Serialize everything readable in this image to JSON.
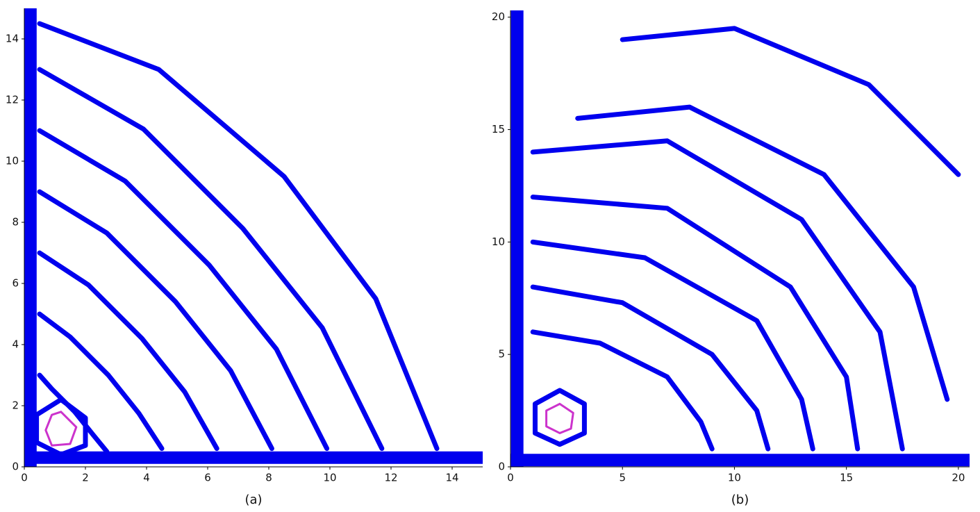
{
  "chart_data": [
    {
      "type": "line",
      "label": "(a)",
      "xlim": [
        0,
        15
      ],
      "ylim": [
        0,
        15
      ],
      "xticks": [
        0,
        2,
        4,
        6,
        8,
        10,
        12,
        14
      ],
      "yticks": [
        0,
        2,
        4,
        6,
        8,
        10,
        12,
        14
      ],
      "series": [
        {
          "color": "#0000ee",
          "x": [
            0.2,
            0.2
          ],
          "y": [
            0,
            15
          ]
        },
        {
          "color": "#0000ee",
          "x": [
            0,
            15
          ],
          "y": [
            0.3,
            0.3
          ]
        },
        {
          "color": "#0000ee",
          "x": [
            0.5,
            0.9,
            1.65,
            2.25,
            2.7
          ],
          "y": [
            3,
            2.55,
            1.8,
            1.05,
            0.5
          ]
        },
        {
          "color": "#0000ee",
          "x": [
            0.5,
            1.5,
            2.75,
            3.75,
            4.5
          ],
          "y": [
            5,
            4.25,
            3,
            1.75,
            0.6
          ]
        },
        {
          "color": "#0000ee",
          "x": [
            0.5,
            2.1,
            3.85,
            5.25,
            6.3
          ],
          "y": [
            7,
            5.95,
            4.2,
            2.45,
            0.6
          ]
        },
        {
          "color": "#0000ee",
          "x": [
            0.5,
            2.7,
            4.95,
            6.75,
            8.1
          ],
          "y": [
            9,
            7.65,
            5.4,
            3.15,
            0.6
          ]
        },
        {
          "color": "#0000ee",
          "x": [
            0.5,
            3.3,
            6.05,
            8.25,
            9.9
          ],
          "y": [
            11,
            9.35,
            6.6,
            3.85,
            0.6
          ]
        },
        {
          "color": "#0000ee",
          "x": [
            0.5,
            3.9,
            7.15,
            9.75,
            11.7
          ],
          "y": [
            13,
            11.05,
            7.8,
            4.55,
            0.6
          ]
        },
        {
          "color": "#0000ee",
          "x": [
            0.5,
            4.4,
            8.5,
            11.5,
            13.5
          ],
          "y": [
            14.5,
            13,
            9.5,
            5.5,
            0.6
          ]
        },
        {
          "color": "#0000ee",
          "x": [
            1.2,
            2.0,
            2.0,
            1.2,
            0.4,
            0.4,
            1.2
          ],
          "y": [
            2.2,
            1.6,
            0.7,
            0.4,
            0.8,
            1.7,
            2.2
          ]
        },
        {
          "color": "#cc33cc",
          "x": [
            1.2,
            1.7,
            1.5,
            0.9,
            0.7,
            0.9,
            1.2
          ],
          "y": [
            1.8,
            1.3,
            0.75,
            0.7,
            1.2,
            1.7,
            1.8
          ]
        }
      ]
    },
    {
      "type": "line",
      "label": "(b)",
      "xlim": [
        0,
        20.5
      ],
      "ylim": [
        0,
        20.3
      ],
      "xticks": [
        0,
        5,
        10,
        15,
        20
      ],
      "yticks": [
        0,
        5,
        10,
        15,
        20
      ],
      "series": [
        {
          "color": "#0000ee",
          "x": [
            0.3,
            0.3
          ],
          "y": [
            0,
            20.3
          ]
        },
        {
          "color": "#0000ee",
          "x": [
            0,
            20.5
          ],
          "y": [
            0.3,
            0.3
          ]
        },
        {
          "color": "#0000ee",
          "x": [
            1,
            4,
            7,
            8.5,
            9
          ],
          "y": [
            6,
            5.5,
            4,
            2,
            0.8
          ]
        },
        {
          "color": "#0000ee",
          "x": [
            1,
            5,
            9,
            11,
            11.5
          ],
          "y": [
            8,
            7.3,
            5,
            2.5,
            0.8
          ]
        },
        {
          "color": "#0000ee",
          "x": [
            1,
            6,
            11,
            13,
            13.5
          ],
          "y": [
            10,
            9.3,
            6.5,
            3,
            0.8
          ]
        },
        {
          "color": "#0000ee",
          "x": [
            1,
            7,
            12.5,
            15,
            15.5
          ],
          "y": [
            12,
            11.5,
            8,
            4,
            0.8
          ]
        },
        {
          "color": "#0000ee",
          "x": [
            1,
            7,
            13,
            16.5,
            17.5
          ],
          "y": [
            14,
            14.5,
            11,
            6,
            0.8
          ]
        },
        {
          "color": "#0000ee",
          "x": [
            3,
            8,
            14,
            18,
            19.5
          ],
          "y": [
            15.5,
            16,
            13,
            8,
            3
          ]
        },
        {
          "color": "#0000ee",
          "x": [
            5,
            10,
            16,
            20
          ],
          "y": [
            19,
            19.5,
            17,
            13
          ]
        },
        {
          "color": "#0000ee",
          "x": [
            2.2,
            3.3,
            3.3,
            2.2,
            1.1,
            1.1,
            2.2
          ],
          "y": [
            3.4,
            2.8,
            1.5,
            1.0,
            1.5,
            2.8,
            3.4
          ]
        },
        {
          "color": "#cc33cc",
          "x": [
            2.2,
            2.8,
            2.7,
            2.2,
            1.6,
            1.6,
            2.2
          ],
          "y": [
            2.8,
            2.4,
            1.7,
            1.5,
            1.8,
            2.5,
            2.8
          ]
        }
      ]
    }
  ]
}
